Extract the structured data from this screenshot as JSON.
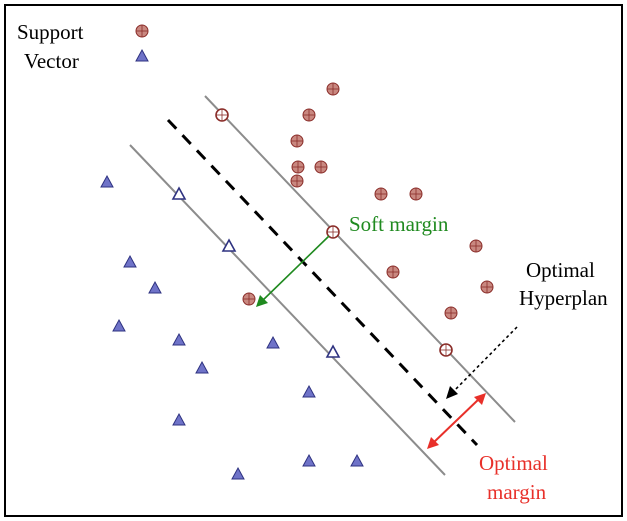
{
  "legend": {
    "items": [
      {
        "label": "Support",
        "marker": "circle-marker"
      },
      {
        "label": "Vector",
        "marker": "triangle-marker"
      }
    ]
  },
  "annotations": {
    "soft_margin": "Soft margin",
    "optimal_hyperplan": [
      "Optimal",
      "Hyperplan"
    ],
    "optimal_margin": [
      "Optimal",
      "margin"
    ]
  },
  "colors": {
    "class_circle_fill": "#c98880",
    "class_circle_stroke": "#8b2e2a",
    "class_triangle_fill": "#6f73c8",
    "class_triangle_stroke": "#2e3280",
    "support_lines": "#8c8c8c",
    "hyperplane": "#000000",
    "soft_margin_color": "#1f8a1f",
    "optimal_margin_color": "#e8302a"
  },
  "counts": {
    "circles": 17,
    "triangles": 19
  }
}
